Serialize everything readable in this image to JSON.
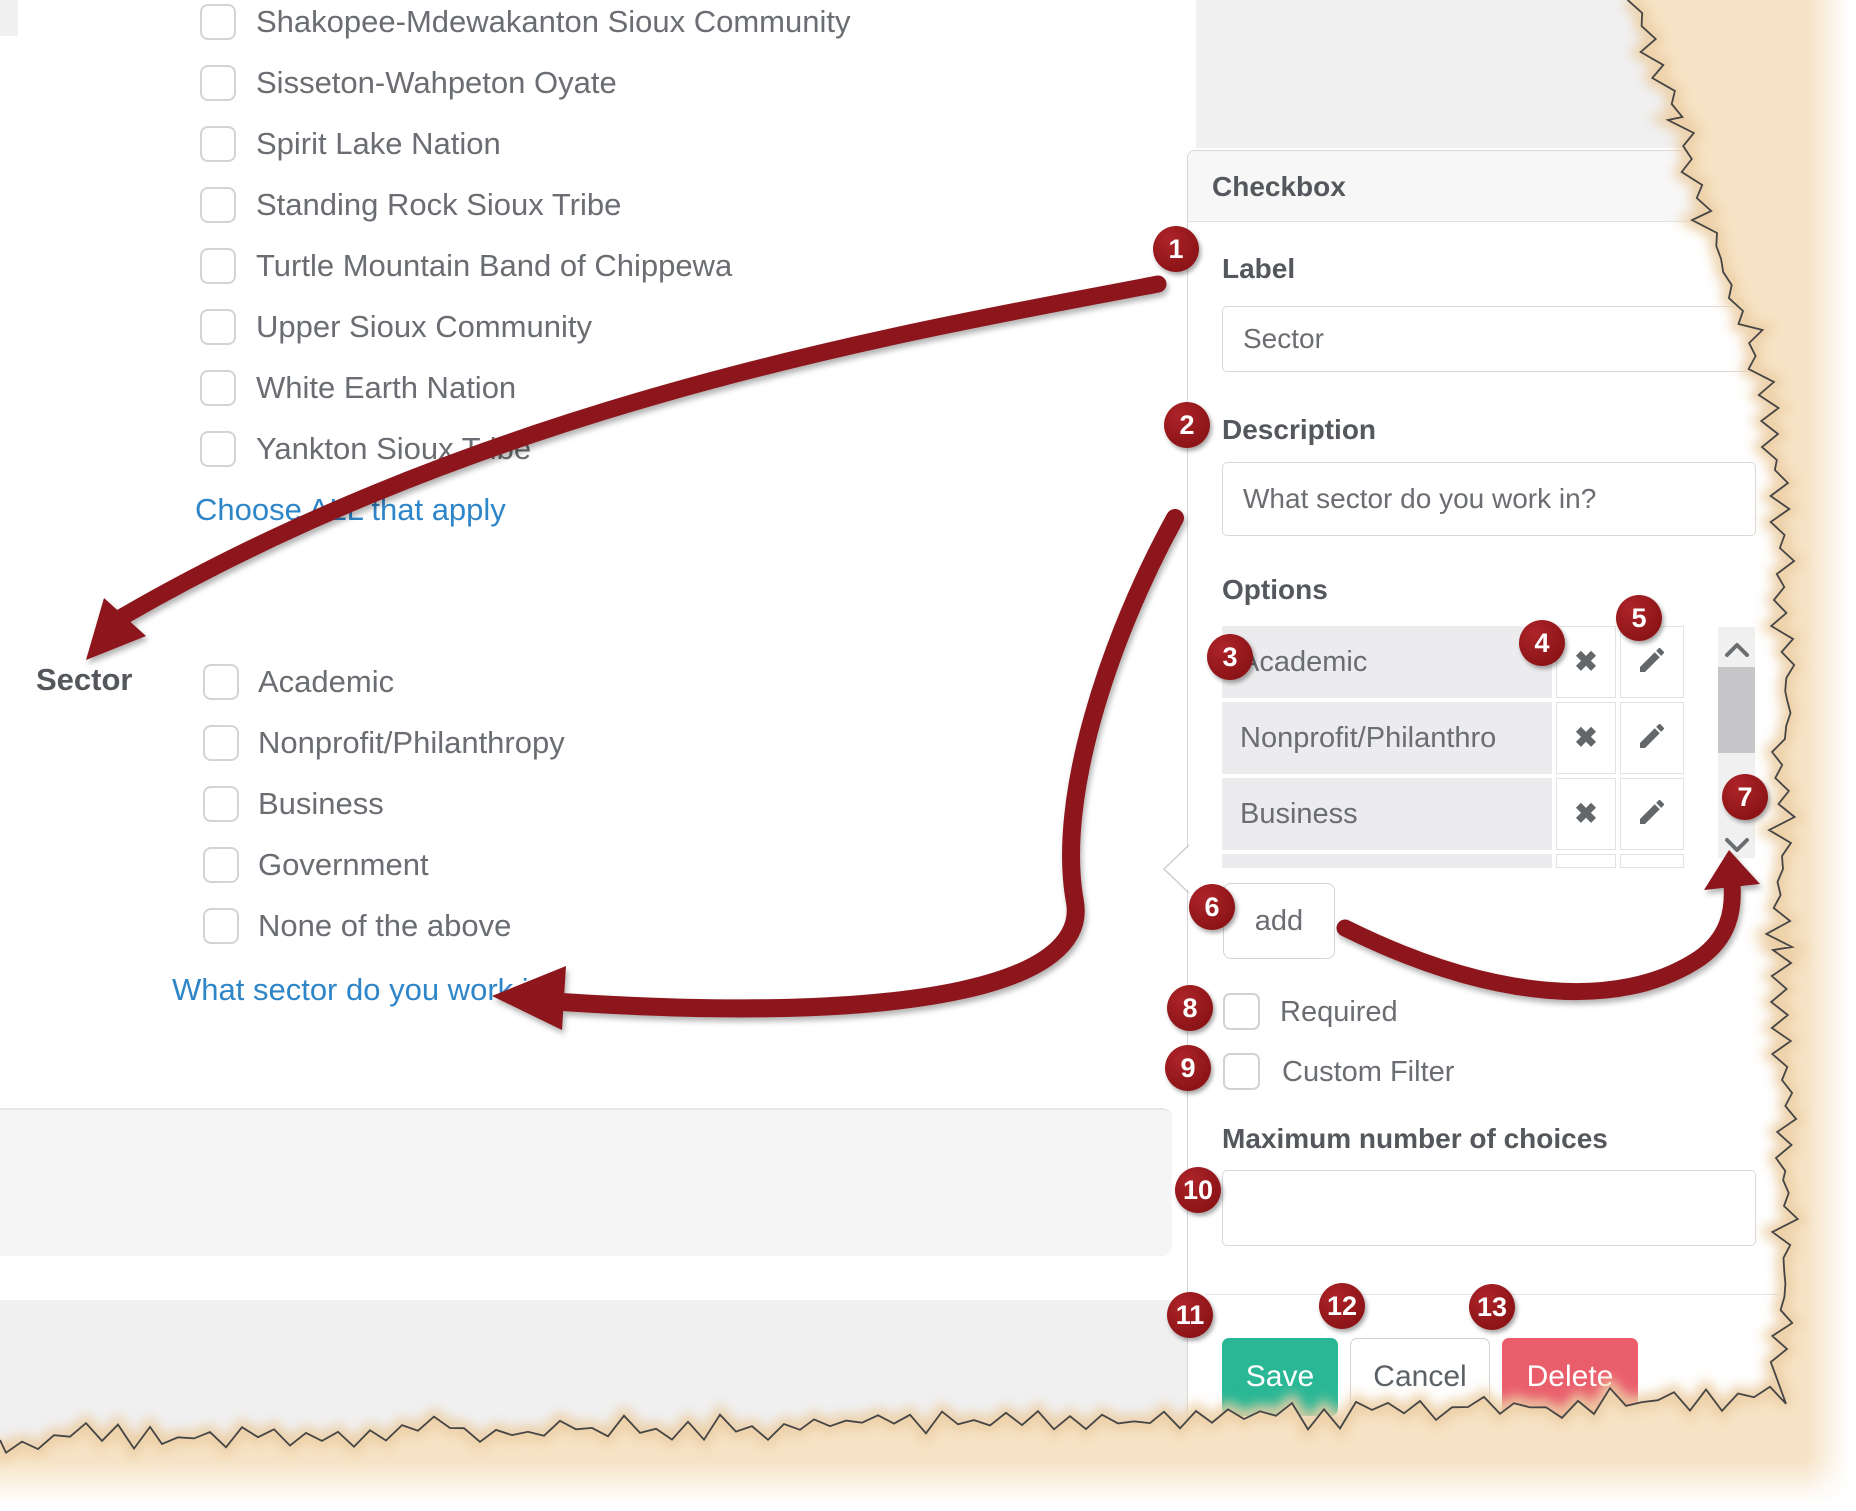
{
  "form": {
    "tribes": [
      "Shakopee-Mdewakanton Sioux Community",
      "Sisseton-Wahpeton Oyate",
      "Spirit Lake Nation",
      "Standing Rock Sioux Tribe",
      "Turtle Mountain Band of Chippewa",
      "Upper Sioux Community",
      "White Earth Nation",
      "Yankton Sioux Tribe"
    ],
    "choose_all_link": "Choose ALL that apply",
    "sector": {
      "label": "Sector",
      "options": [
        "Academic",
        "Nonprofit/Philanthropy",
        "Business",
        "Government",
        "None of the above"
      ],
      "description_link": "What sector do you work in?"
    }
  },
  "panel": {
    "title": "Checkbox",
    "label_heading": "Label",
    "label_value": "Sector",
    "description_heading": "Description",
    "description_value": "What sector do you work in?",
    "options_heading": "Options",
    "options": [
      "Academic",
      "Nonprofit/Philanthro",
      "Business"
    ],
    "add_label": "add",
    "required_label": "Required",
    "custom_filter_label": "Custom Filter",
    "max_choices_heading": "Maximum number of choices",
    "max_choices_value": "",
    "save_label": "Save",
    "cancel_label": "Cancel",
    "delete_label": "Delete"
  },
  "annotations": {
    "badges": [
      "1",
      "2",
      "3",
      "4",
      "5",
      "6",
      "7",
      "8",
      "9",
      "10",
      "11",
      "12",
      "13"
    ]
  },
  "colors": {
    "badge_red": "#9a1b1e",
    "arrow_red": "#8c191c",
    "link_blue": "#2e86c9",
    "save_green": "#29b795",
    "delete_red": "#ea5e6c",
    "torn_paper_tan": "#f6e3c5"
  }
}
